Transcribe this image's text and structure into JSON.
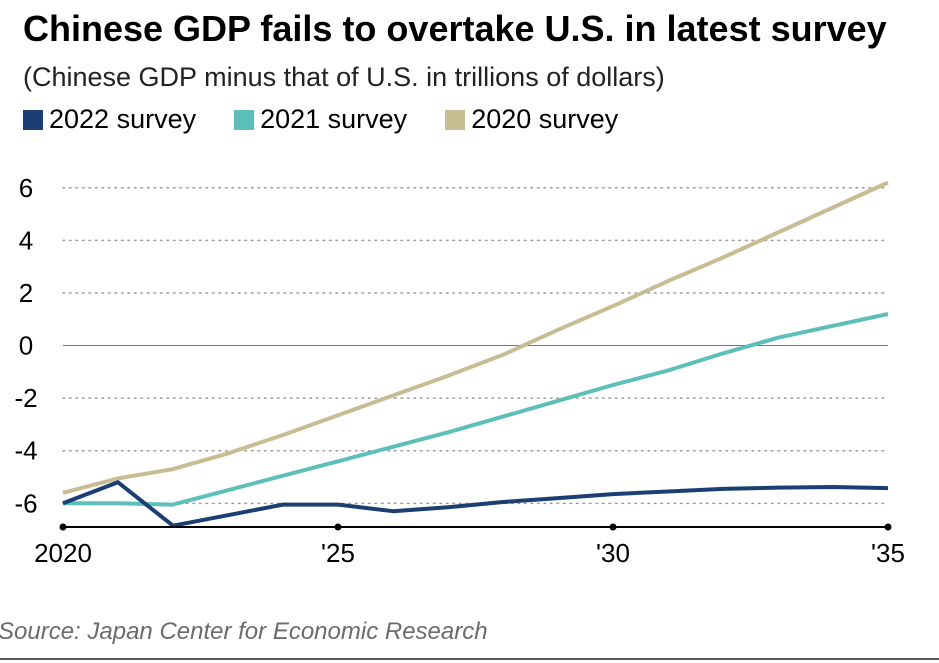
{
  "chart_data": {
    "type": "line",
    "title": "Chinese GDP fails to overtake U.S. in latest survey",
    "subtitle": "(Chinese GDP minus that of U.S. in trillions of dollars)",
    "x": [
      2020,
      2021,
      2022,
      2023,
      2024,
      2025,
      2026,
      2027,
      2028,
      2029,
      2030,
      2031,
      2032,
      2033,
      2034,
      2035
    ],
    "x_ticks": [
      {
        "value": 2020,
        "label": "2020"
      },
      {
        "value": 2025,
        "label": "'25"
      },
      {
        "value": 2030,
        "label": "'30"
      },
      {
        "value": 2035,
        "label": "'35"
      }
    ],
    "y_ticks": [
      6,
      4,
      2,
      0,
      -2,
      -4,
      -6
    ],
    "y_tick_labels": [
      "6",
      "4",
      "2",
      "0",
      "-2",
      "-4",
      "-6"
    ],
    "ylim": [
      -6.9,
      6.6
    ],
    "xlim": [
      2020,
      2035
    ],
    "grid": "horizontal dotted",
    "legend_placement": "top-left",
    "series": [
      {
        "name": "2020 survey",
        "color": "#c8bc92",
        "values": [
          -5.6,
          -5.05,
          -4.7,
          -4.1,
          -3.4,
          -2.65,
          -1.9,
          -1.15,
          -0.35,
          0.6,
          1.5,
          2.45,
          3.35,
          4.3,
          5.25,
          6.2
        ]
      },
      {
        "name": "2021 survey",
        "color": "#5cbfba",
        "values": [
          -6.0,
          -6.0,
          -6.05,
          -5.5,
          -4.95,
          -4.4,
          -3.85,
          -3.3,
          -2.7,
          -2.1,
          -1.5,
          -0.95,
          -0.3,
          0.3,
          0.75,
          1.2
        ]
      },
      {
        "name": "2022 survey",
        "color": "#1b3f73",
        "values": [
          -6.0,
          -5.2,
          -6.85,
          -6.45,
          -6.05,
          -6.05,
          -6.3,
          -6.15,
          -5.95,
          -5.8,
          -5.65,
          -5.55,
          -5.45,
          -5.4,
          -5.38,
          -5.42
        ]
      }
    ],
    "legend_order": [
      "2022 survey",
      "2021 survey",
      "2020 survey"
    ],
    "source": "Source: Japan Center for Economic Research"
  }
}
